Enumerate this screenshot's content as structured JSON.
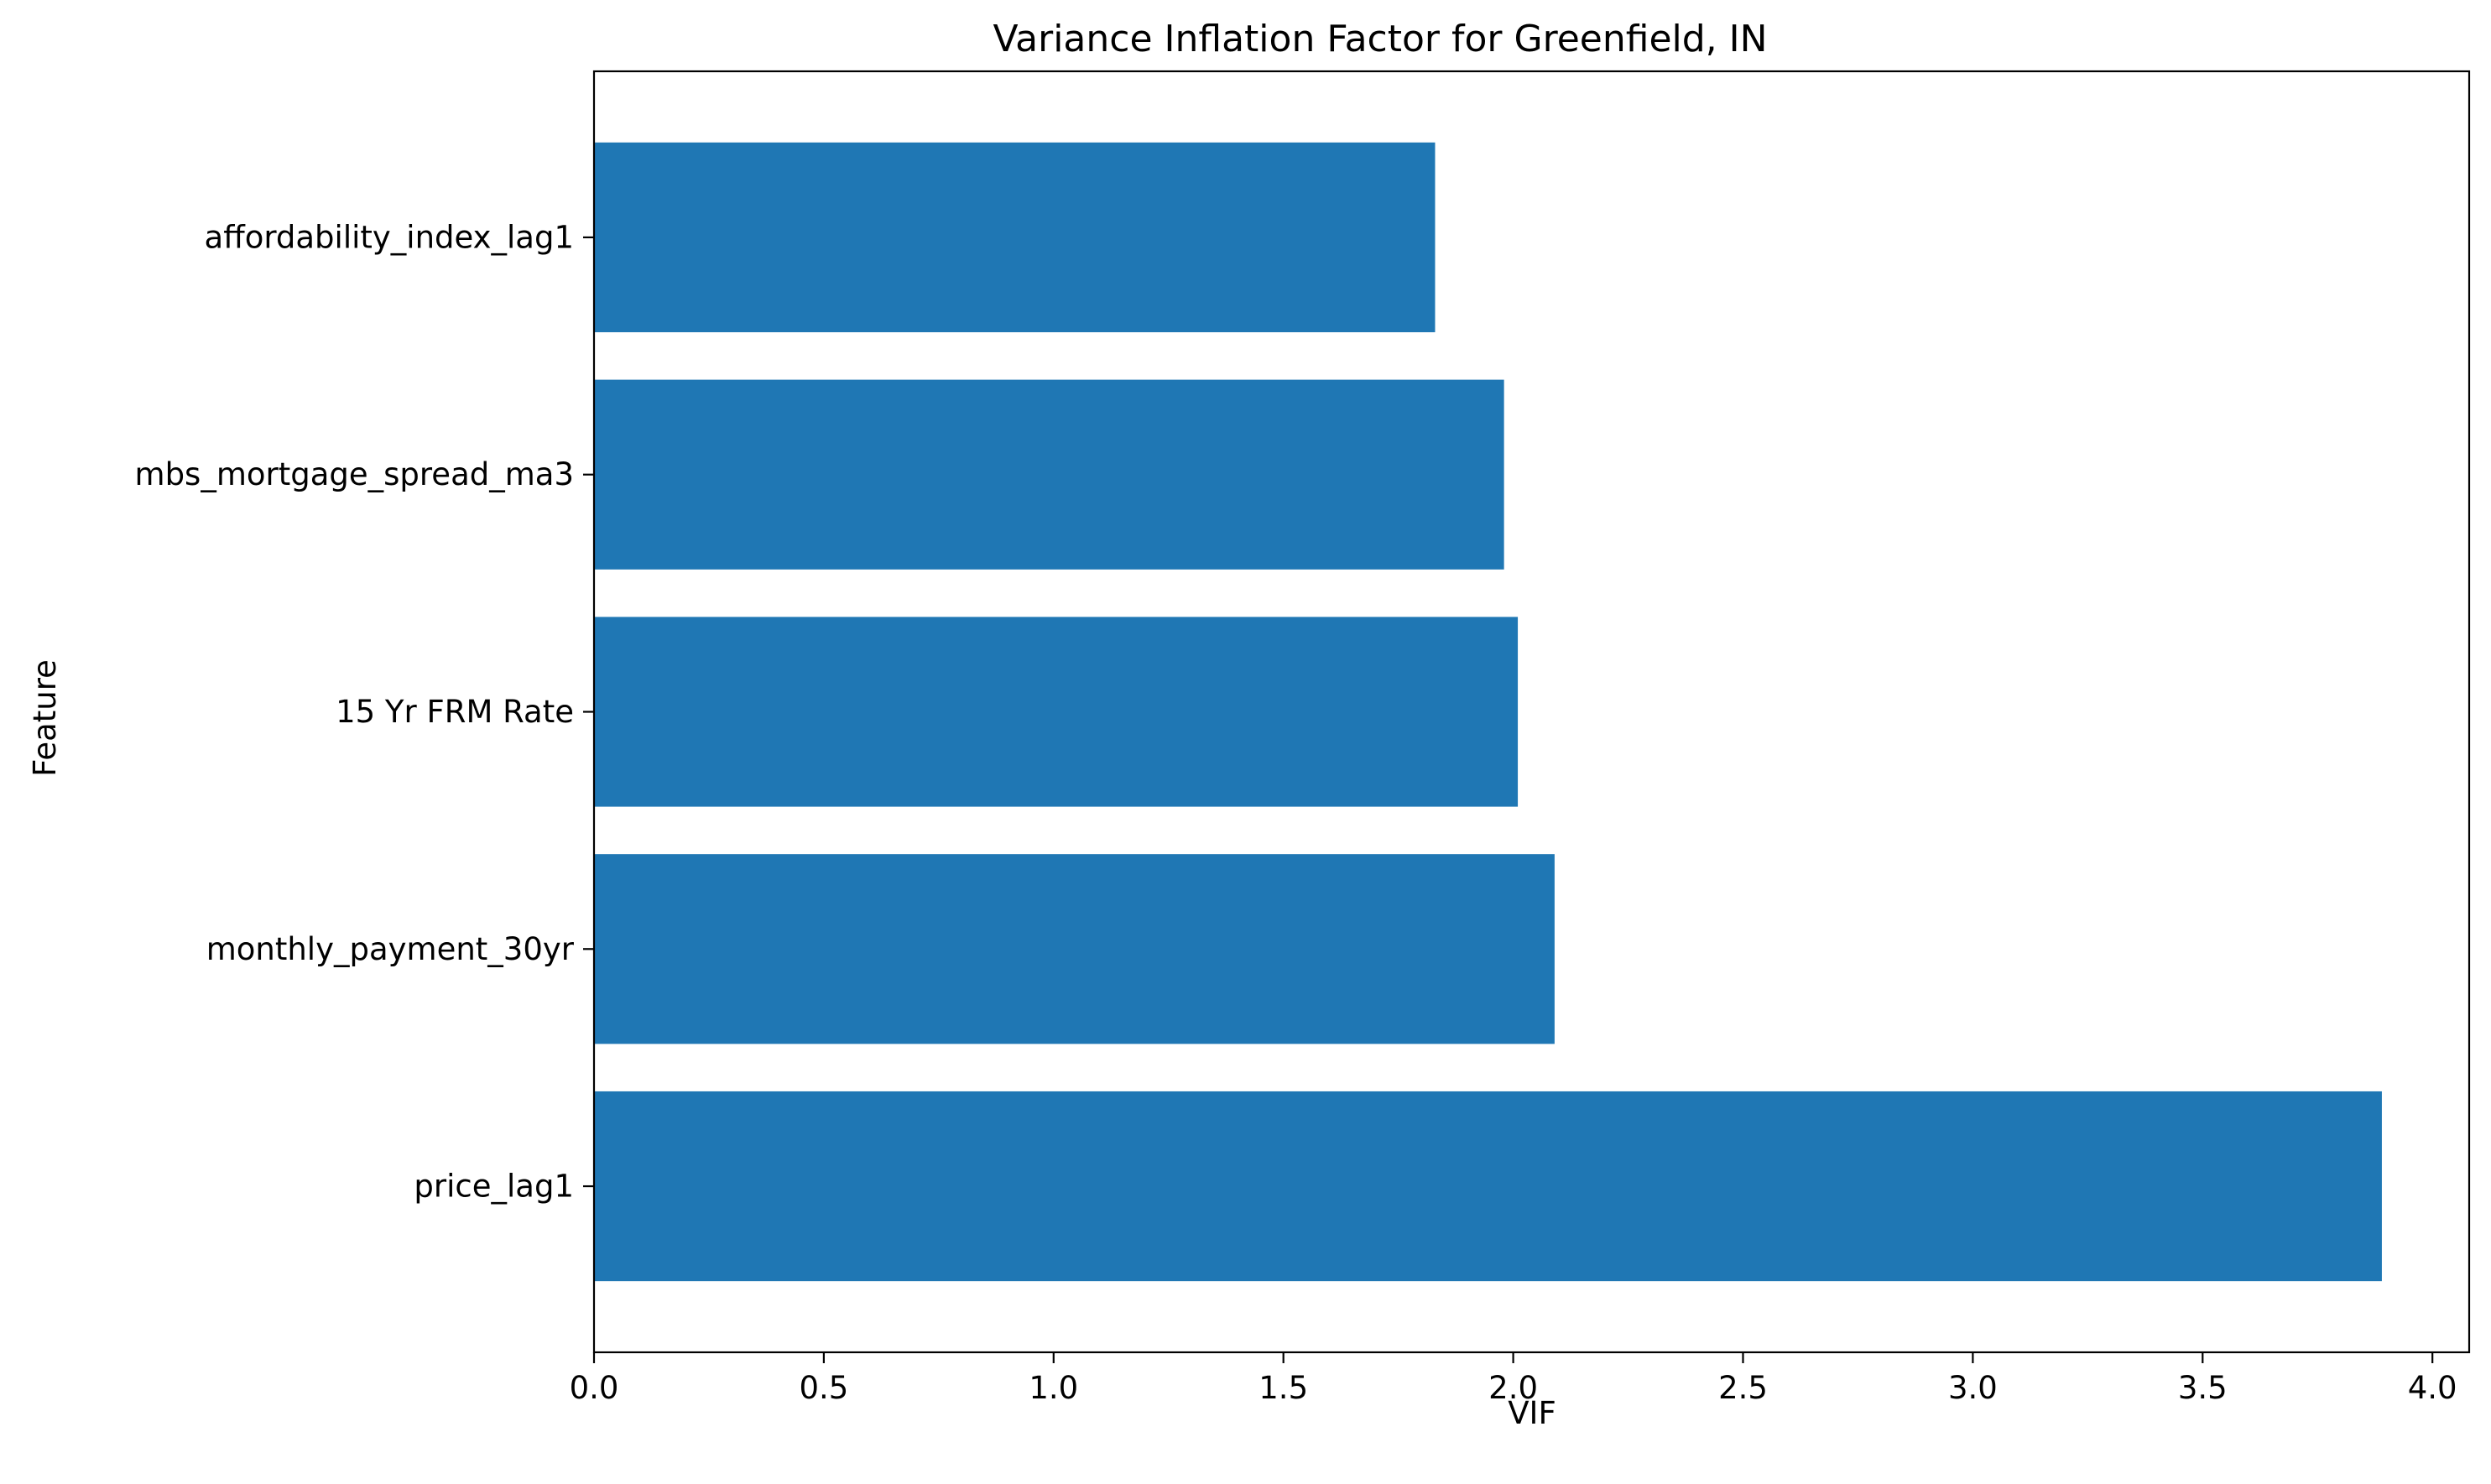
{
  "chart_data": {
    "type": "bar",
    "orientation": "horizontal",
    "title": "Variance Inflation Factor for Greenfield, IN",
    "xlabel": "VIF",
    "ylabel": "Feature",
    "categories": [
      "price_lag1",
      "monthly_payment_30yr",
      "15 Yr FRM Rate",
      "mbs_mortgage_spread_ma3",
      "affordability_index_lag1"
    ],
    "values": [
      3.89,
      2.09,
      2.01,
      1.98,
      1.83
    ],
    "xlim": [
      0.0,
      4.08
    ],
    "xticks": [
      0.0,
      0.5,
      1.0,
      1.5,
      2.0,
      2.5,
      3.0,
      3.5,
      4.0
    ],
    "xtick_labels": [
      "0.0",
      "0.5",
      "1.0",
      "1.5",
      "2.0",
      "2.5",
      "3.0",
      "3.5",
      "4.0"
    ],
    "bar_color": "#1f77b4",
    "grid": false,
    "legend": "none"
  }
}
